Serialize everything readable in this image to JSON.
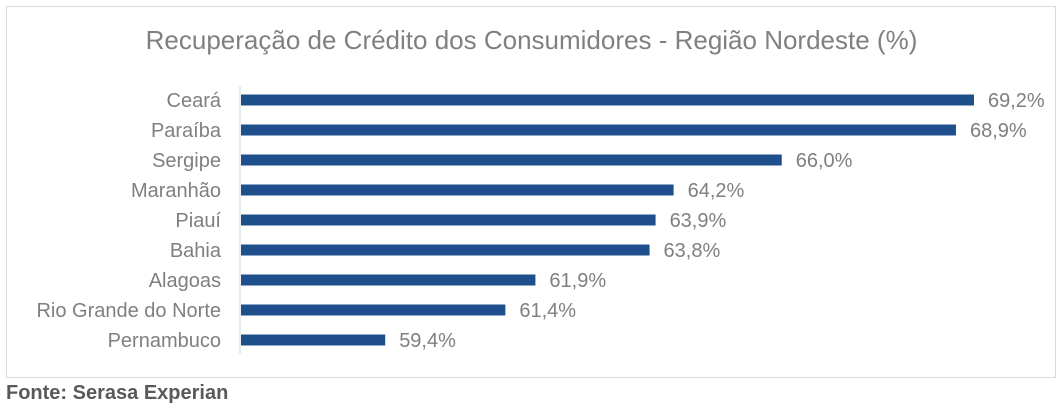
{
  "chart_data": {
    "type": "bar",
    "orientation": "horizontal",
    "title": "Recuperação de Crédito dos Consumidores - Região Nordeste (%)",
    "categories": [
      "Ceará",
      "Paraíba",
      "Sergipe",
      "Maranhão",
      "Piauí",
      "Bahia",
      "Alagoas",
      "Rio Grande do Norte",
      "Pernambuco"
    ],
    "values": [
      69.2,
      68.9,
      66.0,
      64.2,
      63.9,
      63.8,
      61.9,
      61.4,
      59.4
    ],
    "value_labels": [
      "69,2%",
      "68,9%",
      "66,0%",
      "64,2%",
      "63,9%",
      "63,8%",
      "61,9%",
      "61,4%",
      "59,4%"
    ],
    "xlim": [
      57.0,
      69.2
    ],
    "grid": false,
    "legend": "none",
    "bar_color": "#1f4e8c"
  },
  "source": "Fonte: Serasa Experian"
}
